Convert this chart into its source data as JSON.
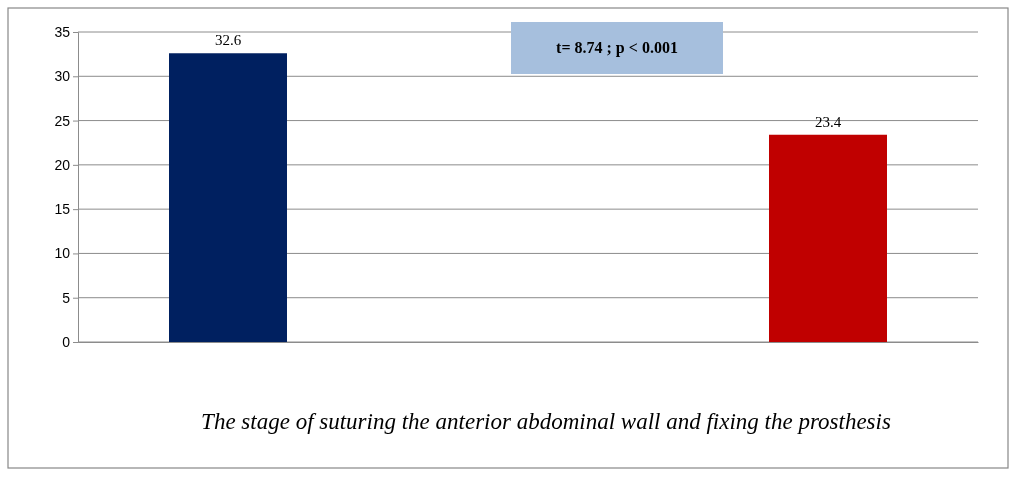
{
  "chart_data": {
    "type": "bar",
    "xlabel": "The stage of suturing the anterior abdominal wall and fixing the prosthesis",
    "categories": [
      null,
      null
    ],
    "values": [
      32.6,
      23.4
    ],
    "colors": [
      "#002060",
      "#c00000"
    ],
    "ylim": [
      0,
      35
    ],
    "yticks": [
      0,
      5,
      10,
      15,
      20,
      25,
      30,
      35
    ],
    "grid": "y",
    "data_labels": true,
    "tick_labels": "y",
    "annotations": [
      "t= 8.74 ; p < 0.001"
    ]
  }
}
